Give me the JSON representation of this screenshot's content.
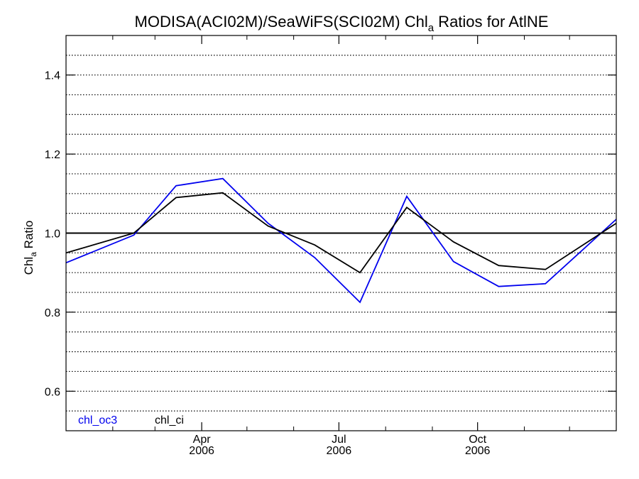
{
  "chart_data": {
    "type": "line",
    "title": {
      "prefix": "MODISA(ACI02M)/SeaWiFS(SCI02M)  Chl",
      "subscript": "a",
      "suffix": " Ratios for AtlNE"
    },
    "ylabel": {
      "prefix": "Chl",
      "subscript": "a",
      "suffix": " Ratio"
    },
    "xlabel": "",
    "xlim": [
      "2006-01-01",
      "2007-01-01"
    ],
    "ylim": [
      0.5,
      1.5
    ],
    "y_ticks": [
      0.6,
      0.8,
      1.0,
      1.2,
      1.4
    ],
    "y_tick_labels": [
      "0.6",
      "0.8",
      "1.0",
      "1.2",
      "1.4"
    ],
    "y_gridlines_step": 0.05,
    "grid": "horizontal dotted",
    "reference_line": 1.0,
    "x_major_ticks": [
      {
        "date": "2006-04-01",
        "label": "Apr",
        "year": "2006"
      },
      {
        "date": "2006-07-01",
        "label": "Jul",
        "year": "2006"
      },
      {
        "date": "2006-10-01",
        "label": "Oct",
        "year": "2006"
      }
    ],
    "x_minor_ticks": [
      "2006-02-01",
      "2006-03-01",
      "2006-05-01",
      "2006-06-01",
      "2006-08-01",
      "2006-09-01",
      "2006-11-01",
      "2006-12-01"
    ],
    "legend_position": "bottom-left",
    "series": [
      {
        "name": "chl_oc3",
        "color": "#0000ee",
        "points": [
          {
            "x": "2006-01-01",
            "y": 0.925
          },
          {
            "x": "2006-02-15",
            "y": 0.995
          },
          {
            "x": "2006-03-15",
            "y": 1.12
          },
          {
            "x": "2006-04-15",
            "y": 1.138
          },
          {
            "x": "2006-05-15",
            "y": 1.025
          },
          {
            "x": "2006-06-15",
            "y": 0.938
          },
          {
            "x": "2006-07-15",
            "y": 0.825
          },
          {
            "x": "2006-08-15",
            "y": 1.093
          },
          {
            "x": "2006-09-15",
            "y": 0.928
          },
          {
            "x": "2006-10-15",
            "y": 0.865
          },
          {
            "x": "2006-11-15",
            "y": 0.872
          },
          {
            "x": "2007-01-01",
            "y": 1.035
          }
        ]
      },
      {
        "name": "chl_ci",
        "color": "#000000",
        "points": [
          {
            "x": "2006-01-01",
            "y": 0.95
          },
          {
            "x": "2006-02-15",
            "y": 1.0
          },
          {
            "x": "2006-03-15",
            "y": 1.09
          },
          {
            "x": "2006-04-15",
            "y": 1.102
          },
          {
            "x": "2006-05-15",
            "y": 1.018
          },
          {
            "x": "2006-06-15",
            "y": 0.97
          },
          {
            "x": "2006-07-15",
            "y": 0.9
          },
          {
            "x": "2006-08-15",
            "y": 1.065
          },
          {
            "x": "2006-09-15",
            "y": 0.978
          },
          {
            "x": "2006-10-15",
            "y": 0.918
          },
          {
            "x": "2006-11-15",
            "y": 0.908
          },
          {
            "x": "2007-01-01",
            "y": 1.025
          }
        ]
      }
    ]
  }
}
